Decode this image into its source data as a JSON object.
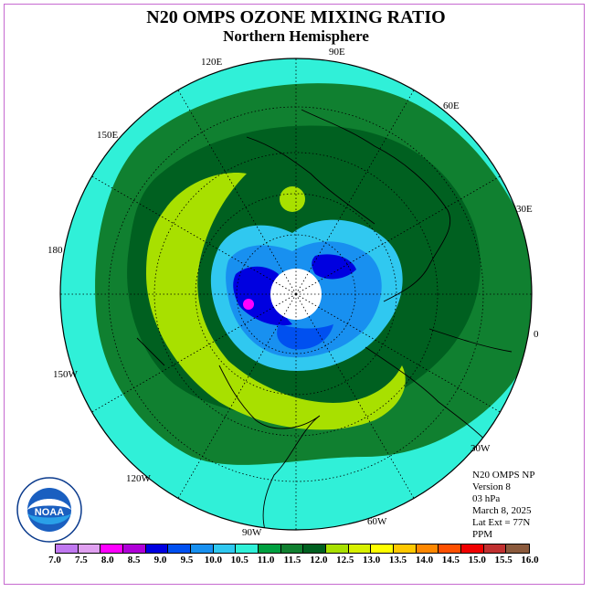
{
  "title": "N20 OMPS OZONE MIXING RATIO",
  "subtitle": "Northern Hemisphere",
  "longitude_labels": [
    "90E",
    "60E",
    "30E",
    "0",
    "30W",
    "60W",
    "90W",
    "120W",
    "150W",
    "180",
    "150E",
    "120E"
  ],
  "info": [
    "N20 OMPS NP",
    "Version 8",
    "03 hPa",
    "March 8, 2025",
    "Lat Ext = 77N",
    "PPM"
  ],
  "logo_text": "NOAA",
  "colorbar": {
    "ticks": [
      "7.0",
      "7.5",
      "8.0",
      "8.5",
      "9.0",
      "9.5",
      "10.0",
      "10.5",
      "11.0",
      "11.5",
      "12.0",
      "12.5",
      "13.0",
      "13.5",
      "14.0",
      "14.5",
      "15.0",
      "15.5",
      "16.0"
    ],
    "colors": [
      "#c078f0",
      "#e0a0f0",
      "#ff00ff",
      "#b000d8",
      "#0000e0",
      "#0050f0",
      "#1890f0",
      "#30c8f0",
      "#30f0d8",
      "#00a040",
      "#108030",
      "#006020",
      "#a8e000",
      "#d8f000",
      "#ffff00",
      "#ffc800",
      "#ff8800",
      "#ff5000",
      "#f00000",
      "#c03030",
      "#8b5a3c"
    ]
  },
  "map_colors": {
    "ocean": "#30f0d8",
    "band_light_green": "#108030",
    "band_dark_green": "#006020",
    "band_lime": "#a8e000",
    "inner_blue_light": "#30c8f0",
    "inner_blue_mid": "#1890f0",
    "inner_blue_dark": "#0000e0",
    "peak": "#ff00ff",
    "pole_hole": "#ffffff"
  }
}
